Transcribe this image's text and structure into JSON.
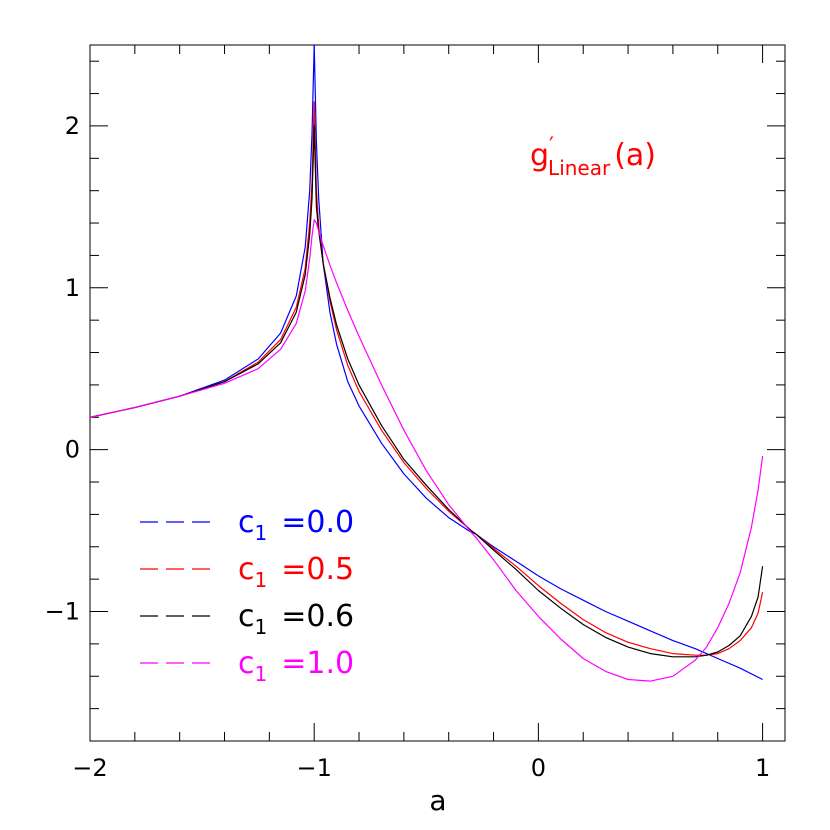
{
  "chart_data": {
    "type": "line",
    "title": "",
    "annotation": {
      "main": "g",
      "prime": "′",
      "sub": "Linear",
      "arg": "(a)",
      "color": "#ff0000",
      "placement": "top-right"
    },
    "xlabel": "a",
    "ylabel": "",
    "xlim": [
      -2,
      1.1
    ],
    "ylim": [
      -1.8,
      2.5
    ],
    "xticks": [
      -2,
      -1,
      0,
      1
    ],
    "xtick_labels": [
      "−2",
      "−1",
      "0",
      "1"
    ],
    "yticks": [
      -1,
      0,
      1,
      2
    ],
    "ytick_labels": [
      "−1",
      "0",
      "1",
      "2"
    ],
    "grid": false,
    "legend_placement": "lower-left",
    "series": [
      {
        "name": "c₁ =0.0",
        "legend": {
          "var": "c",
          "sub": "1",
          "value": "=0.0"
        },
        "color": "#0000ff",
        "x": [
          -2.0,
          -1.8,
          -1.6,
          -1.4,
          -1.25,
          -1.15,
          -1.08,
          -1.04,
          -1.02,
          -1.01,
          -1.0,
          -0.99,
          -0.98,
          -0.96,
          -0.93,
          -0.9,
          -0.85,
          -0.8,
          -0.7,
          -0.6,
          -0.5,
          -0.4,
          -0.3,
          -0.28,
          -0.2,
          -0.1,
          0.0,
          0.1,
          0.2,
          0.3,
          0.4,
          0.5,
          0.6,
          0.7,
          0.75,
          0.8,
          0.9,
          1.0
        ],
        "y": [
          0.2,
          0.26,
          0.33,
          0.43,
          0.56,
          0.72,
          0.95,
          1.25,
          1.6,
          1.95,
          2.5,
          1.9,
          1.55,
          1.15,
          0.85,
          0.65,
          0.42,
          0.27,
          0.04,
          -0.15,
          -0.3,
          -0.42,
          -0.51,
          -0.52,
          -0.6,
          -0.69,
          -0.78,
          -0.86,
          -0.93,
          -1.0,
          -1.06,
          -1.12,
          -1.18,
          -1.23,
          -1.26,
          -1.29,
          -1.35,
          -1.42
        ]
      },
      {
        "name": "c₁ =0.5",
        "legend": {
          "var": "c",
          "sub": "1",
          "value": "=0.5"
        },
        "color": "#ff0000",
        "x": [
          -2.0,
          -1.8,
          -1.6,
          -1.4,
          -1.25,
          -1.15,
          -1.08,
          -1.04,
          -1.02,
          -1.01,
          -1.0,
          -0.99,
          -0.98,
          -0.96,
          -0.93,
          -0.9,
          -0.85,
          -0.8,
          -0.7,
          -0.6,
          -0.5,
          -0.4,
          -0.3,
          -0.28,
          -0.2,
          -0.1,
          0.0,
          0.1,
          0.2,
          0.3,
          0.4,
          0.5,
          0.6,
          0.7,
          0.75,
          0.8,
          0.85,
          0.9,
          0.95,
          0.98,
          1.0
        ],
        "y": [
          0.2,
          0.26,
          0.33,
          0.42,
          0.54,
          0.68,
          0.88,
          1.12,
          1.4,
          1.65,
          2.15,
          1.6,
          1.38,
          1.15,
          0.92,
          0.74,
          0.52,
          0.36,
          0.12,
          -0.08,
          -0.24,
          -0.38,
          -0.5,
          -0.52,
          -0.61,
          -0.72,
          -0.84,
          -0.95,
          -1.05,
          -1.13,
          -1.19,
          -1.23,
          -1.26,
          -1.27,
          -1.27,
          -1.26,
          -1.23,
          -1.18,
          -1.1,
          -1.01,
          -0.88
        ]
      },
      {
        "name": "c₁ =0.6",
        "legend": {
          "var": "c",
          "sub": "1",
          "value": "=0.6"
        },
        "color": "#000000",
        "x": [
          -2.0,
          -1.8,
          -1.6,
          -1.4,
          -1.25,
          -1.15,
          -1.08,
          -1.04,
          -1.02,
          -1.01,
          -1.0,
          -0.99,
          -0.98,
          -0.96,
          -0.93,
          -0.9,
          -0.85,
          -0.8,
          -0.7,
          -0.6,
          -0.5,
          -0.4,
          -0.3,
          -0.28,
          -0.2,
          -0.1,
          0.0,
          0.1,
          0.2,
          0.3,
          0.4,
          0.5,
          0.6,
          0.7,
          0.75,
          0.8,
          0.85,
          0.9,
          0.95,
          0.98,
          1.0
        ],
        "y": [
          0.2,
          0.26,
          0.33,
          0.42,
          0.53,
          0.66,
          0.85,
          1.08,
          1.33,
          1.55,
          2.0,
          1.5,
          1.35,
          1.15,
          0.94,
          0.77,
          0.56,
          0.4,
          0.15,
          -0.06,
          -0.22,
          -0.37,
          -0.5,
          -0.52,
          -0.62,
          -0.74,
          -0.87,
          -0.98,
          -1.08,
          -1.16,
          -1.22,
          -1.26,
          -1.28,
          -1.28,
          -1.27,
          -1.25,
          -1.21,
          -1.15,
          -1.03,
          -0.91,
          -0.72
        ]
      },
      {
        "name": "c₁ =1.0",
        "legend": {
          "var": "c",
          "sub": "1",
          "value": "=1.0"
        },
        "color": "#ff00ff",
        "x": [
          -2.0,
          -1.8,
          -1.6,
          -1.4,
          -1.25,
          -1.15,
          -1.08,
          -1.04,
          -1.02,
          -1.01,
          -1.0,
          -0.99,
          -0.98,
          -0.96,
          -0.93,
          -0.9,
          -0.85,
          -0.8,
          -0.7,
          -0.6,
          -0.5,
          -0.4,
          -0.3,
          -0.28,
          -0.2,
          -0.1,
          0.0,
          0.1,
          0.2,
          0.3,
          0.4,
          0.5,
          0.6,
          0.7,
          0.75,
          0.8,
          0.85,
          0.9,
          0.95,
          0.98,
          1.0
        ],
        "y": [
          0.2,
          0.26,
          0.33,
          0.41,
          0.5,
          0.62,
          0.78,
          0.98,
          1.18,
          1.32,
          1.42,
          1.4,
          1.35,
          1.26,
          1.14,
          1.03,
          0.86,
          0.7,
          0.4,
          0.12,
          -0.13,
          -0.34,
          -0.51,
          -0.54,
          -0.68,
          -0.87,
          -1.03,
          -1.17,
          -1.29,
          -1.37,
          -1.42,
          -1.43,
          -1.4,
          -1.3,
          -1.22,
          -1.1,
          -0.95,
          -0.76,
          -0.48,
          -0.25,
          -0.04
        ]
      }
    ]
  }
}
